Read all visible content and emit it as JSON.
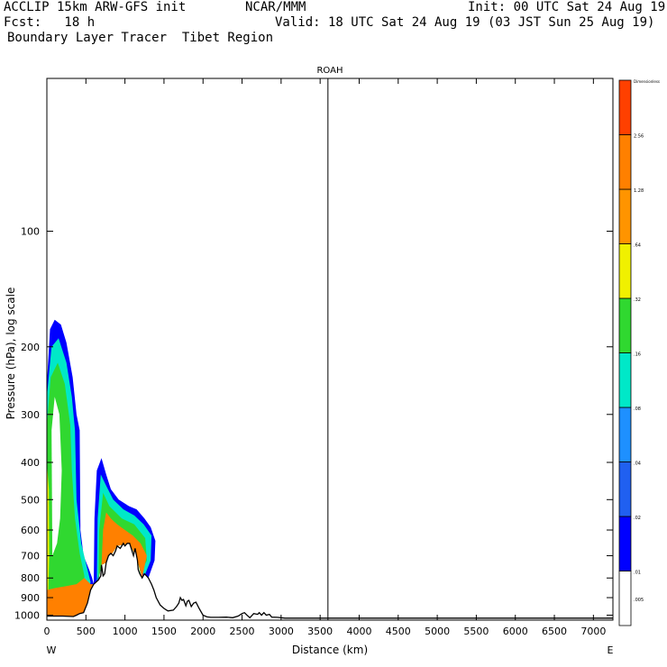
{
  "header": {
    "model": "ACCLIP 15km ARW-GFS init",
    "org": "NCAR/MMM",
    "init": "Init: 00 UTC Sat 24 Aug 19",
    "fcst": "Fcst:   18 h",
    "valid": "Valid: 18 UTC Sat 24 Aug 19 (03 JST Sun 25 Aug 19)",
    "field": "Boundary Layer Tracer  Tibet Region"
  },
  "chart_data": {
    "type": "cross-section contour",
    "title": "ROAH",
    "xlabel": "Distance (km)",
    "ylabel": "Pressure (hPa), log scale",
    "x_ticks": [
      "0",
      "500",
      "1000",
      "1500",
      "2000",
      "2500",
      "3000",
      "3500",
      "4000",
      "4500",
      "5000",
      "5500",
      "6000",
      "6500",
      "7000"
    ],
    "y_ticks": [
      "100",
      "200",
      "300",
      "400",
      "500",
      "600",
      "700",
      "800",
      "900",
      "1000"
    ],
    "x_end_labels": {
      "left": "W",
      "right": "E"
    },
    "xlim": [
      0,
      7250
    ],
    "ylim_hPa": [
      1030,
      40
    ],
    "vertical_marker_km": 3600,
    "colorbar": {
      "levels": [
        ".005",
        ".01",
        ".02",
        ".04",
        ".08",
        ".16",
        ".32",
        ".64",
        "1.28",
        "2.56",
        "Dimensionless"
      ],
      "colors": [
        "#ffffff",
        "#0000ff",
        "#2060f0",
        "#1e90ff",
        "#00e8c8",
        "#30d830",
        "#f0f000",
        "#ff9400",
        "#ff8000",
        "#ff4000"
      ]
    },
    "terrain_km_hPa": [
      [
        0,
        1005
      ],
      [
        200,
        1005
      ],
      [
        340,
        1008
      ],
      [
        380,
        1000
      ],
      [
        420,
        990
      ],
      [
        470,
        985
      ],
      [
        520,
        930
      ],
      [
        560,
        860
      ],
      [
        600,
        830
      ],
      [
        630,
        820
      ],
      [
        660,
        810
      ],
      [
        690,
        790
      ],
      [
        700,
        740
      ],
      [
        720,
        790
      ],
      [
        740,
        780
      ],
      [
        760,
        730
      ],
      [
        790,
        700
      ],
      [
        820,
        690
      ],
      [
        850,
        700
      ],
      [
        880,
        680
      ],
      [
        900,
        660
      ],
      [
        940,
        670
      ],
      [
        980,
        650
      ],
      [
        1000,
        660
      ],
      [
        1030,
        650
      ],
      [
        1060,
        650
      ],
      [
        1080,
        670
      ],
      [
        1110,
        700
      ],
      [
        1130,
        670
      ],
      [
        1160,
        720
      ],
      [
        1170,
        760
      ],
      [
        1190,
        780
      ],
      [
        1220,
        800
      ],
      [
        1250,
        780
      ],
      [
        1300,
        800
      ],
      [
        1340,
        830
      ],
      [
        1370,
        860
      ],
      [
        1400,
        900
      ],
      [
        1450,
        940
      ],
      [
        1500,
        960
      ],
      [
        1550,
        975
      ],
      [
        1620,
        970
      ],
      [
        1660,
        950
      ],
      [
        1690,
        930
      ],
      [
        1710,
        900
      ],
      [
        1730,
        915
      ],
      [
        1750,
        910
      ],
      [
        1780,
        945
      ],
      [
        1800,
        920
      ],
      [
        1820,
        915
      ],
      [
        1850,
        950
      ],
      [
        1880,
        930
      ],
      [
        1910,
        925
      ],
      [
        1950,
        960
      ],
      [
        2000,
        1000
      ],
      [
        2050,
        1010
      ],
      [
        2100,
        1013
      ],
      [
        2200,
        1013
      ],
      [
        2300,
        1012
      ],
      [
        2380,
        1015
      ],
      [
        2450,
        1005
      ],
      [
        2500,
        990
      ],
      [
        2530,
        985
      ],
      [
        2560,
        998
      ],
      [
        2600,
        1015
      ],
      [
        2650,
        990
      ],
      [
        2700,
        995
      ],
      [
        2720,
        985
      ],
      [
        2750,
        1000
      ],
      [
        2780,
        985
      ],
      [
        2810,
        1000
      ],
      [
        2850,
        995
      ],
      [
        2880,
        1012
      ],
      [
        2950,
        1013
      ],
      [
        3050,
        1018
      ],
      [
        4000,
        1018
      ],
      [
        7250,
        1018
      ]
    ],
    "tracer_bands": [
      {
        "level": ".01",
        "color": "#0000ff",
        "region": "plume west 0-480 km up to 170 hPa; plume 580-1400 km up to 380 hPa"
      },
      {
        "level": ".08",
        "color": "#00e8c8",
        "region": "inner plumes"
      },
      {
        "level": ".16",
        "color": "#30d830",
        "region": "inner plumes"
      },
      {
        "level": ".32",
        "color": "#f0f000",
        "region": "west edge near surface"
      },
      {
        "level": "1.28",
        "color": "#ff8000",
        "region": "boundary layer 0-620 km and 700-1350 km"
      }
    ]
  }
}
